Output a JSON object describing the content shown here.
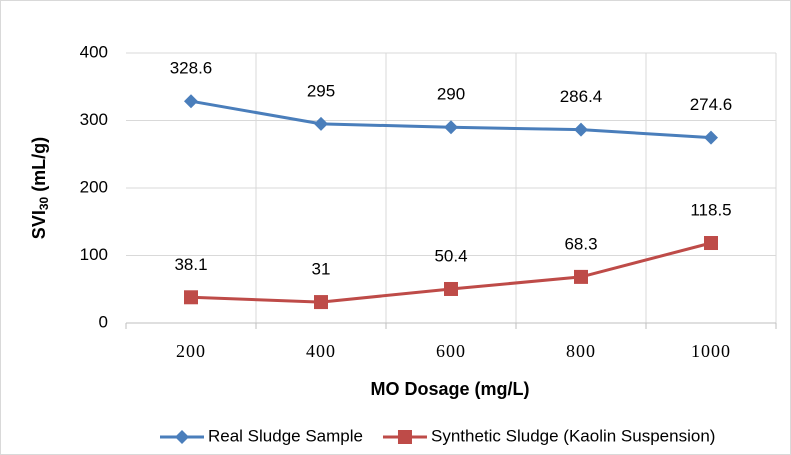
{
  "chart_data": {
    "type": "line",
    "xlabel": "MO Dosage (mg/L)",
    "ylabel": [
      "SVI",
      "30",
      " (mL/g)"
    ],
    "categories": [
      "200",
      "400",
      "600",
      "800",
      "1000"
    ],
    "series": [
      {
        "name": "Real Sludge Sample",
        "color": "#4a7ebb",
        "marker": "diamond",
        "values": [
          328.6,
          295,
          290,
          286.4,
          274.6
        ]
      },
      {
        "name": "Synthetic Sludge (Kaolin Suspension)",
        "color": "#be4b48",
        "marker": "square",
        "values": [
          38.1,
          31,
          50.4,
          68.3,
          118.5
        ]
      }
    ],
    "ylim": [
      0,
      400
    ],
    "yticks": [
      0,
      100,
      200,
      300,
      400
    ],
    "grid": true,
    "legend": "bottom"
  }
}
